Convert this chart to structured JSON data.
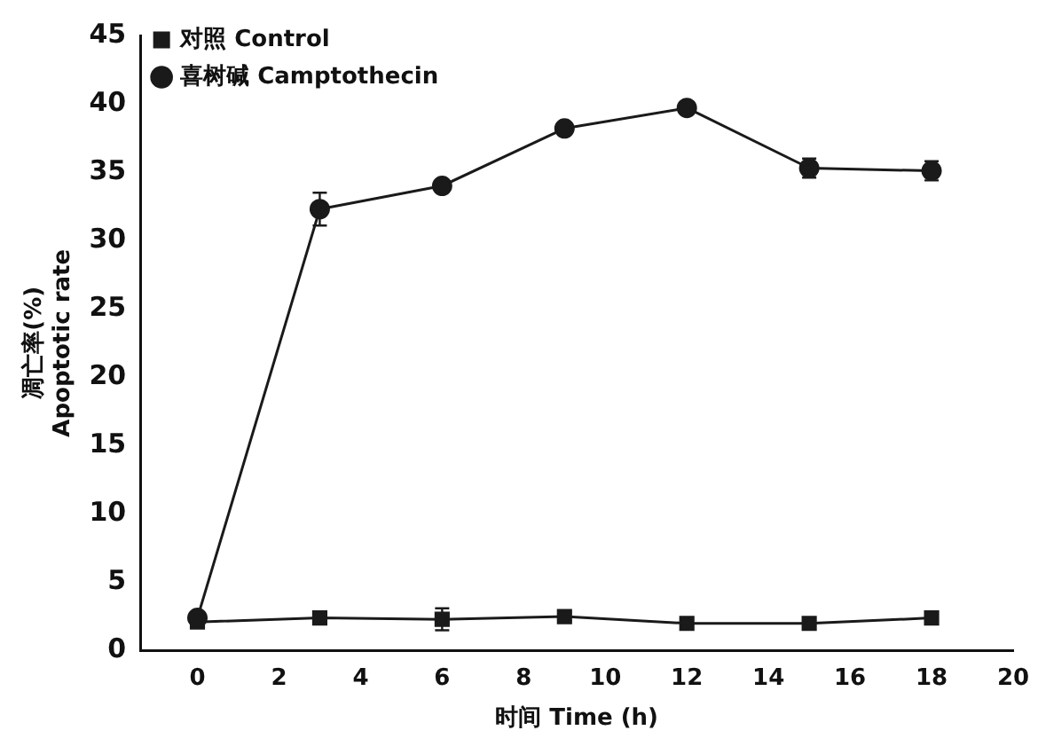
{
  "chart_data": {
    "type": "line",
    "xlabel": "时间 Time (h)",
    "ylabel": "凋亡率(%)\nApoptotic rate",
    "x": [
      0,
      3,
      6,
      9,
      12,
      15,
      18
    ],
    "series": [
      {
        "name": "对照 Control",
        "color": "#1a1a1a",
        "marker": "square",
        "values": [
          2.1,
          2.4,
          2.3,
          2.5,
          2.0,
          2.0,
          2.4
        ],
        "errors": [
          null,
          null,
          0.8,
          0.3,
          null,
          null,
          null
        ]
      },
      {
        "name": "喜树碱 Camptothecin",
        "color": "#1a1a1a",
        "marker": "circle",
        "values": [
          2.4,
          32.3,
          34.0,
          38.2,
          39.7,
          35.3,
          35.1
        ],
        "errors": [
          null,
          1.2,
          null,
          null,
          null,
          0.7,
          0.7
        ]
      }
    ],
    "xlim": [
      -1.4,
      20
    ],
    "xticks": [
      0,
      2,
      4,
      6,
      8,
      10,
      12,
      14,
      16,
      18,
      20
    ],
    "ylim": [
      0,
      45
    ],
    "yticks": [
      0,
      5,
      10,
      15,
      20,
      25,
      30,
      35,
      40,
      45
    ],
    "grid": false,
    "legend": "top left",
    "line_style": "solid"
  }
}
